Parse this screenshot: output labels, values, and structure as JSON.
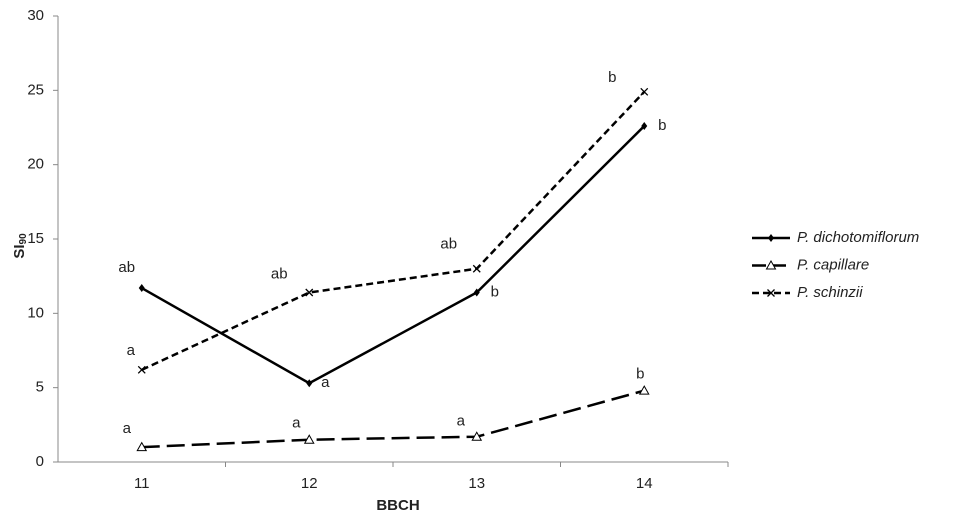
{
  "chart_data": {
    "type": "line",
    "x_label": "BBCH",
    "y_label": "SI",
    "y_label_subscript": "90",
    "categories": [
      "11",
      "12",
      "13",
      "14"
    ],
    "ylim": [
      0,
      30
    ],
    "yticks": [
      0,
      5,
      10,
      15,
      20,
      25,
      30
    ],
    "grid": false,
    "legend": "right",
    "series": [
      {
        "name": "P. dichotomiflorum",
        "color": "#000000",
        "dash": "solid",
        "marker": "diamond",
        "values": [
          11.7,
          5.3,
          11.4,
          22.6
        ],
        "labels": [
          "ab",
          "a",
          "b",
          "b"
        ]
      },
      {
        "name": "P. capillare",
        "color": "#000000",
        "dash": "long",
        "marker": "triangle",
        "values": [
          1.0,
          1.5,
          1.7,
          4.8
        ],
        "labels": [
          "a",
          "a",
          "a",
          "b"
        ]
      },
      {
        "name": "P. schinzii",
        "color": "#000000",
        "dash": "short",
        "marker": "cross",
        "values": [
          6.2,
          11.4,
          13.0,
          24.9
        ],
        "labels": [
          "a",
          "ab",
          "ab",
          "b"
        ]
      }
    ]
  }
}
